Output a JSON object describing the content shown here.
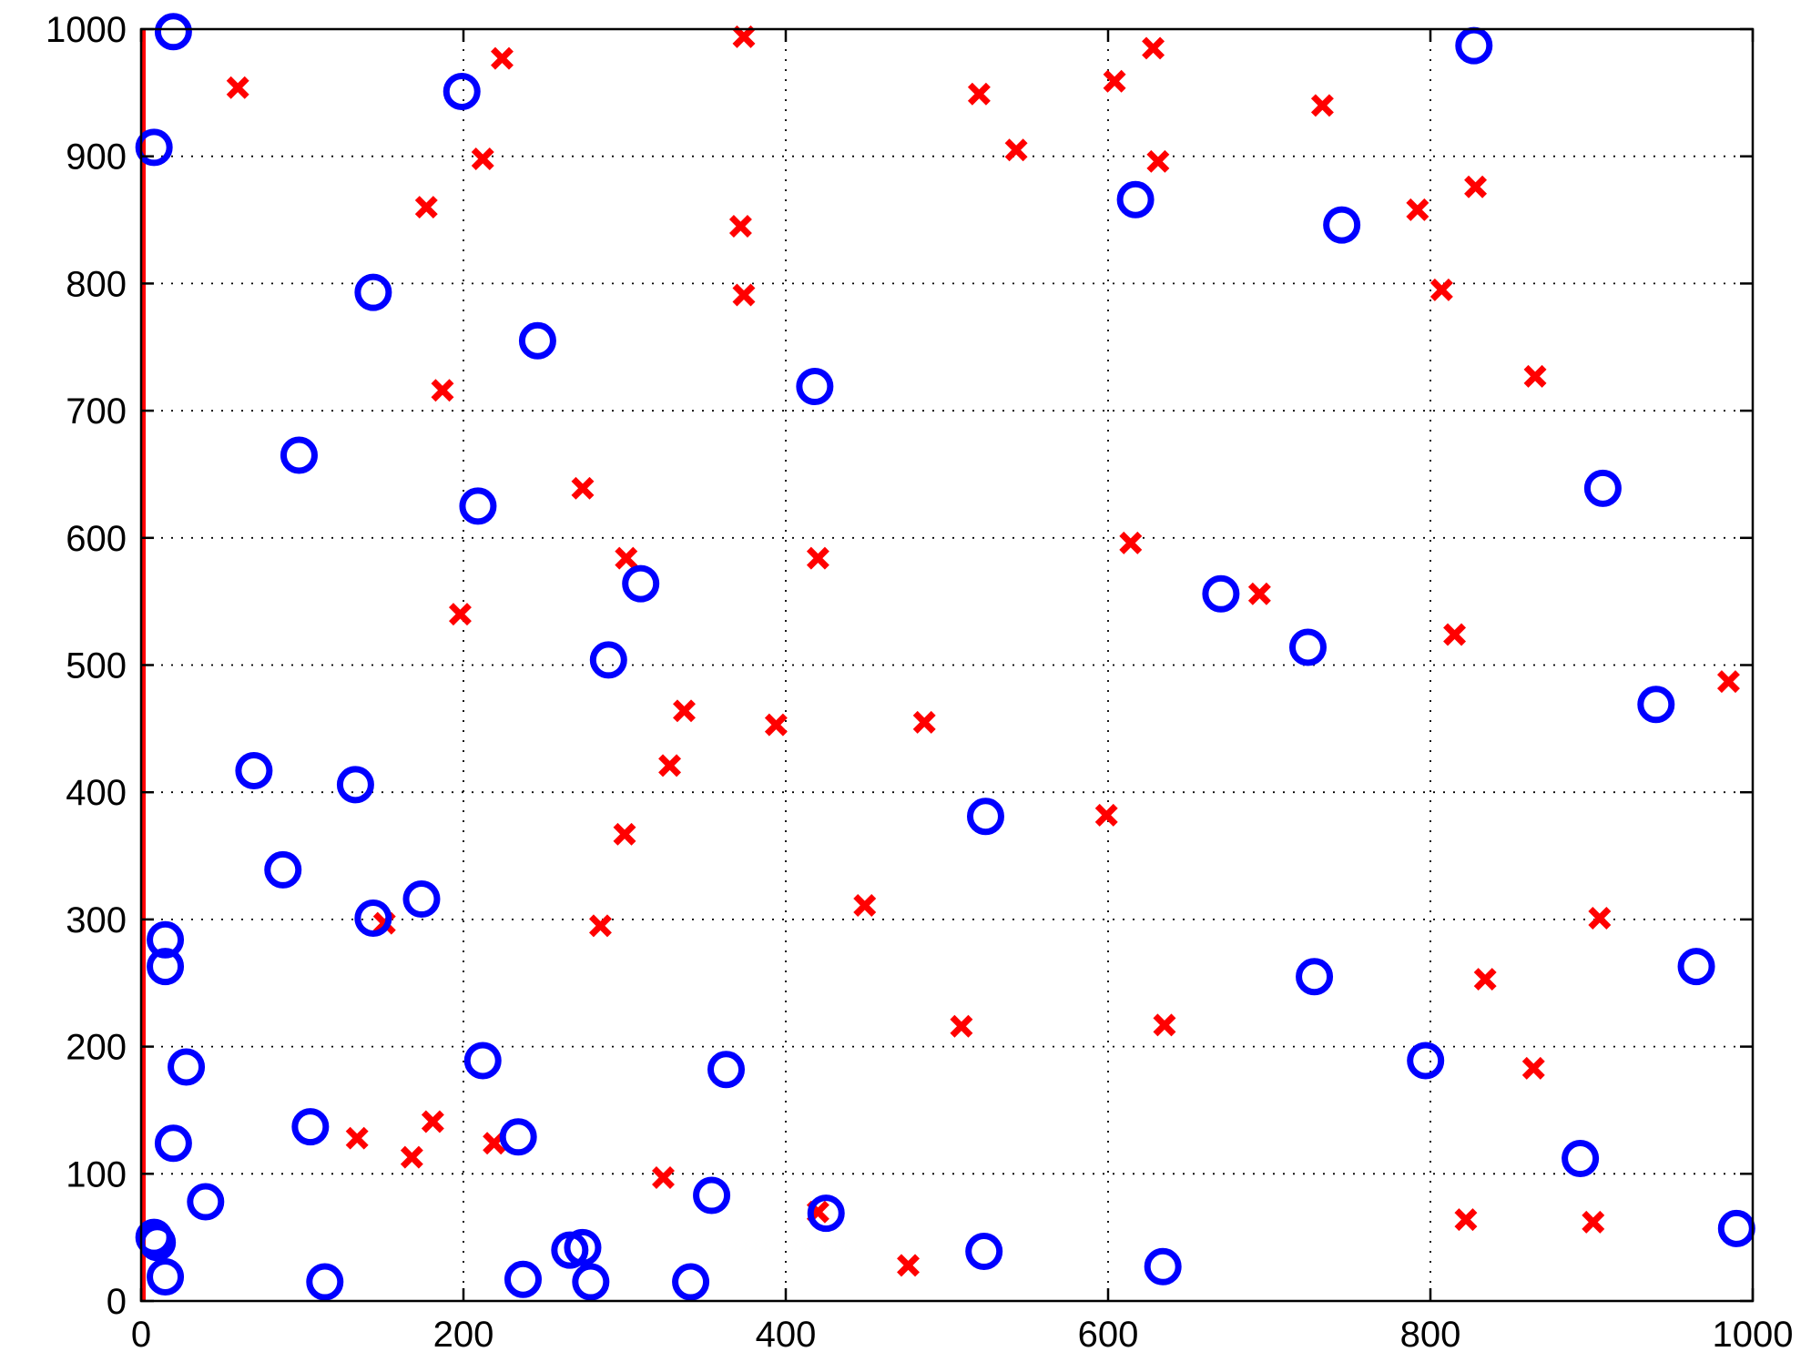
{
  "chart_data": {
    "type": "scatter",
    "xlim": [
      0,
      1000
    ],
    "ylim": [
      0,
      1000
    ],
    "grid": true,
    "xticks": [
      "0",
      "200",
      "400",
      "600",
      "800",
      "1000"
    ],
    "yticks": [
      "0",
      "100",
      "200",
      "300",
      "400",
      "500",
      "600",
      "700",
      "800",
      "900",
      "1000"
    ],
    "vertical_line": {
      "x": 0,
      "y_range": [
        0,
        1000
      ],
      "color": "#ff0000"
    },
    "series": [
      {
        "marker": "circle",
        "color": "#0000ff",
        "points": [
          [
            20,
            998
          ],
          [
            8,
            907
          ],
          [
            199,
            951
          ],
          [
            827,
            987
          ],
          [
            144,
            793
          ],
          [
            617,
            866
          ],
          [
            745,
            846
          ],
          [
            246,
            755
          ],
          [
            418,
            719
          ],
          [
            98,
            665
          ],
          [
            209,
            625
          ],
          [
            907,
            639
          ],
          [
            310,
            564
          ],
          [
            670,
            556
          ],
          [
            724,
            514
          ],
          [
            290,
            504
          ],
          [
            940,
            469
          ],
          [
            70,
            417
          ],
          [
            133,
            406
          ],
          [
            524,
            381
          ],
          [
            88,
            339
          ],
          [
            174,
            316
          ],
          [
            144,
            301
          ],
          [
            15,
            284
          ],
          [
            15,
            263
          ],
          [
            728,
            255
          ],
          [
            965,
            263
          ],
          [
            28,
            184
          ],
          [
            212,
            189
          ],
          [
            363,
            182
          ],
          [
            797,
            189
          ],
          [
            105,
            137
          ],
          [
            20,
            124
          ],
          [
            234,
            129
          ],
          [
            893,
            112
          ],
          [
            40,
            78
          ],
          [
            354,
            83
          ],
          [
            425,
            69
          ],
          [
            8,
            50
          ],
          [
            10,
            46
          ],
          [
            266,
            40
          ],
          [
            274,
            42
          ],
          [
            523,
            39
          ],
          [
            990,
            57
          ],
          [
            15,
            19
          ],
          [
            114,
            15
          ],
          [
            237,
            17
          ],
          [
            279,
            15
          ],
          [
            341,
            15
          ],
          [
            634,
            27
          ]
        ]
      },
      {
        "marker": "x",
        "color": "#ff0000",
        "points": [
          [
            60,
            954
          ],
          [
            224,
            977
          ],
          [
            374,
            994
          ],
          [
            520,
            949
          ],
          [
            604,
            959
          ],
          [
            628,
            985
          ],
          [
            733,
            940
          ],
          [
            212,
            898
          ],
          [
            543,
            905
          ],
          [
            631,
            896
          ],
          [
            177,
            860
          ],
          [
            372,
            845
          ],
          [
            792,
            858
          ],
          [
            828,
            876
          ],
          [
            374,
            791
          ],
          [
            807,
            795
          ],
          [
            865,
            727
          ],
          [
            187,
            716
          ],
          [
            274,
            639
          ],
          [
            301,
            584
          ],
          [
            614,
            596
          ],
          [
            420,
            584
          ],
          [
            198,
            540
          ],
          [
            694,
            556
          ],
          [
            815,
            524
          ],
          [
            985,
            487
          ],
          [
            337,
            464
          ],
          [
            394,
            453
          ],
          [
            486,
            455
          ],
          [
            328,
            421
          ],
          [
            599,
            382
          ],
          [
            300,
            367
          ],
          [
            449,
            311
          ],
          [
            151,
            297
          ],
          [
            285,
            295
          ],
          [
            905,
            301
          ],
          [
            834,
            253
          ],
          [
            509,
            216
          ],
          [
            635,
            217
          ],
          [
            864,
            183
          ],
          [
            134,
            128
          ],
          [
            181,
            141
          ],
          [
            168,
            113
          ],
          [
            219,
            124
          ],
          [
            324,
            97
          ],
          [
            420,
            70
          ],
          [
            476,
            28
          ],
          [
            822,
            64
          ],
          [
            901,
            62
          ]
        ]
      }
    ]
  }
}
